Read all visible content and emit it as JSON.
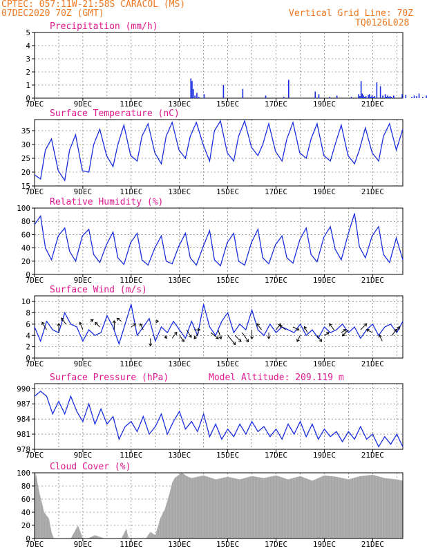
{
  "header": {
    "station": "CPTEC:   057:11W-21:58S   CARACOL (MS)",
    "run": "07DEC2020 70Z (GMT)",
    "grid": "Vertical Grid Line: 70Z",
    "code": "TQ0126L028"
  },
  "colors": {
    "header": "#f07820",
    "title": "#e0168c",
    "series": "#1a2ee0",
    "cloud": "#a8a8a8",
    "axis": "#000000",
    "grid": "#555555"
  },
  "x_ticks": [
    "7DEC",
    "9DEC",
    "11DEC",
    "13DEC",
    "15DEC",
    "17DEC",
    "19DEC",
    "21DEC"
  ],
  "model_altitude": "Model Altitude: 209.119 m",
  "chart_data": [
    {
      "id": "precip",
      "type": "bar",
      "title": "Precipitation (mm/h)",
      "ylim": [
        0,
        5
      ],
      "yticks": [
        0,
        1,
        2,
        3,
        4,
        5
      ],
      "x": [
        6.45,
        6.5,
        6.55,
        6.62,
        6.7,
        6.78,
        7.0,
        7.8,
        8.6,
        9.55,
        10.3,
        10.5,
        11.6,
        11.75,
        12.2,
        12.5,
        13.1,
        13.4,
        13.45,
        13.5,
        13.55,
        13.6,
        13.65,
        13.7,
        13.8,
        13.85,
        13.9,
        13.95,
        14.0,
        14.05,
        14.15,
        14.3,
        14.4,
        14.5,
        14.55,
        14.6,
        14.65,
        14.7,
        14.75,
        14.85,
        15.2,
        15.35,
        15.6,
        15.7,
        15.8,
        15.9,
        16.05,
        16.2,
        16.4,
        16.55,
        16.75,
        16.85,
        17.0,
        17.15,
        17.25,
        17.35,
        17.45,
        17.5,
        17.6,
        17.75,
        17.85,
        17.95,
        18.05,
        18.2,
        18.3,
        18.4,
        18.6,
        18.8,
        18.9,
        19.05,
        19.35,
        19.45,
        19.55,
        19.75,
        19.85,
        19.95,
        20.05,
        20.15,
        20.3,
        20.4,
        20.5,
        20.55,
        20.6,
        20.65,
        20.7,
        20.8,
        20.9,
        21.05,
        21.2,
        21.3,
        21.45
      ],
      "values": [
        1.5,
        1.3,
        0.7,
        0.2,
        0.4,
        0.1,
        0.3,
        1.0,
        0.7,
        0.2,
        0.1,
        1.4,
        0.5,
        0.3,
        0.1,
        0.2,
        0.1,
        0.3,
        0.15,
        1.3,
        0.35,
        0.2,
        0.1,
        0.15,
        0.25,
        0.3,
        0.1,
        0.2,
        0.1,
        0.15,
        1.2,
        0.9,
        0.2,
        0.3,
        0.1,
        0.2,
        0.1,
        0.15,
        0.1,
        0.2,
        0.3,
        0.25,
        0.1,
        0.2,
        0.15,
        0.35,
        0.1,
        0.2,
        0.4,
        0.15,
        1.5,
        0.25,
        0.1,
        1.9,
        0.15,
        0.1,
        0.2,
        0.3,
        0.15,
        0.25,
        0.35,
        0.1,
        0.15,
        0.2,
        0.1,
        0.3,
        0.8,
        1.4,
        0.3,
        0.1,
        0.5,
        1.45,
        0.2,
        0.7,
        0.2,
        0.1,
        1.75,
        0.2,
        0.2,
        0.2,
        0.35,
        0.1,
        0.15,
        0.2,
        0.4,
        0.1,
        0.15,
        0.1,
        0.4,
        0.15,
        0.25
      ]
    },
    {
      "id": "temp",
      "type": "line",
      "title": "Surface Temperature (nC)",
      "ylim": [
        15,
        39
      ],
      "yticks": [
        15,
        20,
        25,
        30,
        35
      ],
      "x": [
        0,
        0.25,
        0.45,
        0.7,
        0.98,
        1.25,
        1.45,
        1.7,
        1.98,
        2.25,
        2.45,
        2.7,
        2.98,
        3.25,
        3.45,
        3.7,
        3.98,
        4.25,
        4.45,
        4.7,
        4.98,
        5.25,
        5.45,
        5.7,
        5.98,
        6.25,
        6.45,
        6.7,
        6.98,
        7.25,
        7.45,
        7.7,
        7.98,
        8.25,
        8.45,
        8.7,
        8.98,
        9.25,
        9.45,
        9.7,
        9.98,
        10.25,
        10.45,
        10.7,
        10.98,
        11.25,
        11.45,
        11.7,
        11.98,
        12.25,
        12.45,
        12.7,
        12.98,
        13.25,
        13.45,
        13.7,
        13.98,
        14.25,
        14.45,
        14.7,
        14.98,
        15.25
      ],
      "values": [
        19,
        17.5,
        28,
        32,
        20.5,
        17,
        28,
        33.5,
        20.5,
        20,
        30,
        35.5,
        26,
        22,
        30,
        37,
        26,
        24,
        33,
        37.5,
        27,
        23,
        33,
        38,
        28,
        25,
        33,
        38,
        30,
        24,
        35,
        38.5,
        27,
        24,
        33,
        38.5,
        29,
        26,
        30,
        37.5,
        27.5,
        24,
        32,
        38,
        27,
        25,
        32,
        37.5,
        26,
        24,
        30,
        37,
        26,
        23,
        28,
        36,
        27,
        24,
        33,
        37.5,
        28,
        35.5
      ]
    },
    {
      "id": "rh",
      "type": "line",
      "title": "Relative Humidity (%)",
      "ylim": [
        0,
        100
      ],
      "yticks": [
        0,
        20,
        40,
        60,
        80,
        100
      ],
      "x": [
        0,
        0.25,
        0.45,
        0.7,
        0.98,
        1.25,
        1.45,
        1.7,
        1.98,
        2.25,
        2.45,
        2.7,
        2.98,
        3.25,
        3.45,
        3.7,
        3.98,
        4.25,
        4.45,
        4.7,
        4.98,
        5.25,
        5.45,
        5.7,
        5.98,
        6.25,
        6.45,
        6.7,
        6.98,
        7.25,
        7.45,
        7.7,
        7.98,
        8.25,
        8.45,
        8.7,
        8.98,
        9.25,
        9.45,
        9.7,
        9.98,
        10.25,
        10.45,
        10.7,
        10.98,
        11.25,
        11.45,
        11.7,
        11.98,
        12.25,
        12.45,
        12.7,
        12.98,
        13.25,
        13.45,
        13.7,
        13.98,
        14.25,
        14.45,
        14.7,
        14.98,
        15.25
      ],
      "values": [
        75,
        88,
        40,
        22,
        58,
        70,
        35,
        20,
        58,
        68,
        30,
        18,
        45,
        64,
        25,
        15,
        48,
        62,
        22,
        14,
        40,
        58,
        20,
        16,
        43,
        62,
        25,
        14,
        42,
        66,
        22,
        13,
        48,
        62,
        20,
        14,
        48,
        68,
        25,
        16,
        45,
        58,
        25,
        17,
        52,
        70,
        30,
        19,
        56,
        72,
        38,
        22,
        60,
        92,
        42,
        25,
        58,
        72,
        30,
        18,
        55,
        22
      ]
    },
    {
      "id": "wind",
      "type": "line",
      "title": "Surface Wind (m/s)",
      "ylim": [
        0,
        11
      ],
      "yticks": [
        0,
        2,
        4,
        6,
        8,
        10
      ],
      "x": [
        0,
        0.25,
        0.5,
        0.75,
        1.0,
        1.25,
        1.5,
        1.75,
        2.0,
        2.25,
        2.5,
        2.75,
        3.0,
        3.25,
        3.5,
        3.75,
        4.0,
        4.25,
        4.5,
        4.75,
        5.0,
        5.25,
        5.5,
        5.75,
        6.0,
        6.25,
        6.5,
        6.75,
        7.0,
        7.25,
        7.5,
        7.75,
        8.0,
        8.25,
        8.5,
        8.75,
        9.0,
        9.25,
        9.5,
        9.75,
        10.0,
        10.25,
        10.5,
        10.75,
        11.0,
        11.25,
        11.5,
        11.75,
        12.0,
        12.25,
        12.5,
        12.75,
        13.0,
        13.25,
        13.5,
        13.75,
        14.0,
        14.25,
        14.5,
        14.75,
        15.0,
        15.25
      ],
      "values": [
        5.5,
        3.0,
        6.5,
        5.0,
        4.5,
        8.0,
        6.0,
        5.5,
        3.0,
        5.0,
        4.0,
        4.5,
        7.5,
        5.5,
        2.5,
        6.0,
        9.5,
        4.0,
        5.5,
        7.0,
        3.0,
        5.5,
        4.5,
        6.5,
        5.0,
        3.5,
        6.5,
        4.0,
        9.5,
        5.5,
        4.0,
        6.5,
        8.0,
        4.5,
        6.0,
        5.0,
        8.5,
        5.0,
        4.0,
        6.0,
        4.5,
        5.5,
        5.0,
        4.5,
        6.0,
        4.0,
        5.0,
        3.5,
        5.5,
        4.5,
        5.0,
        6.0,
        4.5,
        5.5,
        3.5,
        5.0,
        6.0,
        4.0,
        5.5,
        6.0,
        4.5,
        6.5
      ],
      "vectors": [
        {
          "x": 0.5,
          "y": 5.0,
          "u": -3,
          "v": 5
        },
        {
          "x": 1.0,
          "y": 4.5,
          "u": 0,
          "v": 6
        },
        {
          "x": 1.3,
          "y": 6.0,
          "u": -3,
          "v": 4
        },
        {
          "x": 2.0,
          "y": 5.0,
          "u": -2,
          "v": 5
        },
        {
          "x": 2.3,
          "y": 6.5,
          "u": 2,
          "v": 1
        },
        {
          "x": 2.7,
          "y": 5.5,
          "u": -3,
          "v": 3
        },
        {
          "x": 3.3,
          "y": 5.0,
          "u": 0,
          "v": 6
        },
        {
          "x": 3.6,
          "y": 6.5,
          "u": -3,
          "v": 2
        },
        {
          "x": 4.0,
          "y": 5.5,
          "u": 3,
          "v": 2
        },
        {
          "x": 4.5,
          "y": 5.0,
          "u": -2,
          "v": 4
        },
        {
          "x": 4.8,
          "y": 3.5,
          "u": 0,
          "v": -5
        },
        {
          "x": 5.0,
          "y": 6.5,
          "u": 2,
          "v": 0
        },
        {
          "x": 5.4,
          "y": 4.0,
          "u": 1,
          "v": -2
        },
        {
          "x": 5.7,
          "y": 3.5,
          "u": 3,
          "v": 4
        },
        {
          "x": 6.0,
          "y": 4.0,
          "u": 3,
          "v": -4
        },
        {
          "x": 6.3,
          "y": 5.0,
          "u": 3,
          "v": -5
        },
        {
          "x": 6.6,
          "y": 5.0,
          "u": 4,
          "v": 0
        },
        {
          "x": 6.8,
          "y": 4.5,
          "u": -3,
          "v": -4
        },
        {
          "x": 7.3,
          "y": 4.5,
          "u": 5,
          "v": -4
        },
        {
          "x": 7.6,
          "y": 5.0,
          "u": 2,
          "v": -6
        },
        {
          "x": 8.0,
          "y": 4.0,
          "u": 5,
          "v": -6
        },
        {
          "x": 8.3,
          "y": 4.0,
          "u": 4,
          "v": -4
        },
        {
          "x": 8.6,
          "y": 4.5,
          "u": 4,
          "v": -6
        },
        {
          "x": 9.0,
          "y": 5.0,
          "u": 0,
          "v": -6
        },
        {
          "x": 9.4,
          "y": 5.0,
          "u": -3,
          "v": 4
        },
        {
          "x": 9.7,
          "y": 4.5,
          "u": 0,
          "v": -4
        },
        {
          "x": 10.0,
          "y": 5.0,
          "u": 3,
          "v": 4
        },
        {
          "x": 10.4,
          "y": 5.0,
          "u": -4,
          "v": 3
        },
        {
          "x": 10.7,
          "y": 5.5,
          "u": 4,
          "v": -2
        },
        {
          "x": 11.0,
          "y": 4.0,
          "u": -2,
          "v": -4
        },
        {
          "x": 11.3,
          "y": 4.5,
          "u": -2,
          "v": 4
        },
        {
          "x": 11.7,
          "y": 4.0,
          "u": 3,
          "v": -4
        },
        {
          "x": 12.0,
          "y": 4.0,
          "u": 3,
          "v": 2
        },
        {
          "x": 12.4,
          "y": 5.0,
          "u": -3,
          "v": 4
        },
        {
          "x": 12.7,
          "y": 4.5,
          "u": 3,
          "v": 2
        },
        {
          "x": 13.0,
          "y": 5.0,
          "u": -4,
          "v": -4
        },
        {
          "x": 13.5,
          "y": 5.0,
          "u": 4,
          "v": 4
        },
        {
          "x": 14.0,
          "y": 4.5,
          "u": -4,
          "v": 2
        },
        {
          "x": 14.4,
          "y": 3.0,
          "u": -2,
          "v": 4
        },
        {
          "x": 14.8,
          "y": 4.0,
          "u": 3,
          "v": 4
        },
        {
          "x": 15.0,
          "y": 5.0,
          "u": 2,
          "v": 2
        }
      ]
    },
    {
      "id": "pres",
      "type": "line",
      "title": "Surface Pressure (hPa)",
      "ylim": [
        978,
        991
      ],
      "yticks": [
        978,
        981,
        984,
        987,
        990
      ],
      "x": [
        0,
        0.25,
        0.5,
        0.75,
        1.0,
        1.25,
        1.5,
        1.75,
        2.0,
        2.25,
        2.5,
        2.75,
        3.0,
        3.25,
        3.5,
        3.75,
        4.0,
        4.25,
        4.5,
        4.75,
        5.0,
        5.25,
        5.5,
        5.75,
        6.0,
        6.25,
        6.5,
        6.75,
        7.0,
        7.25,
        7.5,
        7.75,
        8.0,
        8.25,
        8.5,
        8.75,
        9.0,
        9.25,
        9.5,
        9.75,
        10.0,
        10.25,
        10.5,
        10.75,
        11.0,
        11.25,
        11.5,
        11.75,
        12.0,
        12.25,
        12.5,
        12.75,
        13.0,
        13.25,
        13.5,
        13.75,
        14.0,
        14.25,
        14.5,
        14.75,
        15.0,
        15.25
      ],
      "values": [
        988.5,
        989.5,
        988.5,
        985,
        987.5,
        985,
        988.5,
        985.5,
        983.5,
        987,
        983,
        986,
        983,
        984.5,
        980,
        982.5,
        983.5,
        981.5,
        984.5,
        981,
        982.5,
        985,
        981,
        983.5,
        985.5,
        982,
        983.5,
        981.5,
        985,
        980.5,
        983,
        980,
        982,
        980.5,
        983,
        981,
        983.5,
        981.5,
        982.5,
        980.5,
        982,
        980,
        983,
        981,
        983.5,
        980.5,
        983,
        980,
        982,
        980.5,
        981.5,
        979.5,
        981.5,
        980,
        982.5,
        980,
        981,
        978.5,
        980.5,
        979,
        981,
        978.5
      ]
    },
    {
      "id": "cloud",
      "type": "area",
      "title": "Cloud Cover (%)",
      "ylim": [
        0,
        100
      ],
      "yticks": [
        0,
        20,
        40,
        60,
        80,
        100
      ],
      "x": [
        0,
        0.05,
        0.2,
        0.4,
        0.6,
        0.7,
        0.8,
        1.1,
        1.5,
        1.8,
        2.0,
        2.2,
        2.5,
        2.9,
        3.1,
        3.3,
        3.6,
        3.8,
        3.9,
        4.0,
        4.4,
        4.6,
        4.8,
        5.0,
        5.2,
        5.4,
        5.6,
        5.7,
        5.8,
        5.9,
        6.1,
        6.3,
        6.5,
        7.0,
        7.5,
        8.0,
        8.5,
        9.0,
        9.5,
        10.0,
        10.5,
        11.0,
        11.5,
        12.0,
        12.5,
        13.0,
        13.5,
        14.0,
        14.5,
        15.0,
        15.25
      ],
      "values": [
        85,
        100,
        70,
        40,
        30,
        10,
        0,
        0,
        0,
        20,
        0,
        0,
        5,
        0,
        0,
        0,
        0,
        15,
        0,
        0,
        0,
        0,
        10,
        5,
        30,
        45,
        70,
        85,
        92,
        95,
        100,
        95,
        92,
        96,
        90,
        94,
        90,
        95,
        92,
        96,
        90,
        95,
        88,
        96,
        94,
        90,
        95,
        97,
        92,
        90,
        88
      ]
    },
    {
      "id": "temp_title_unused",
      "type": "none"
    }
  ]
}
